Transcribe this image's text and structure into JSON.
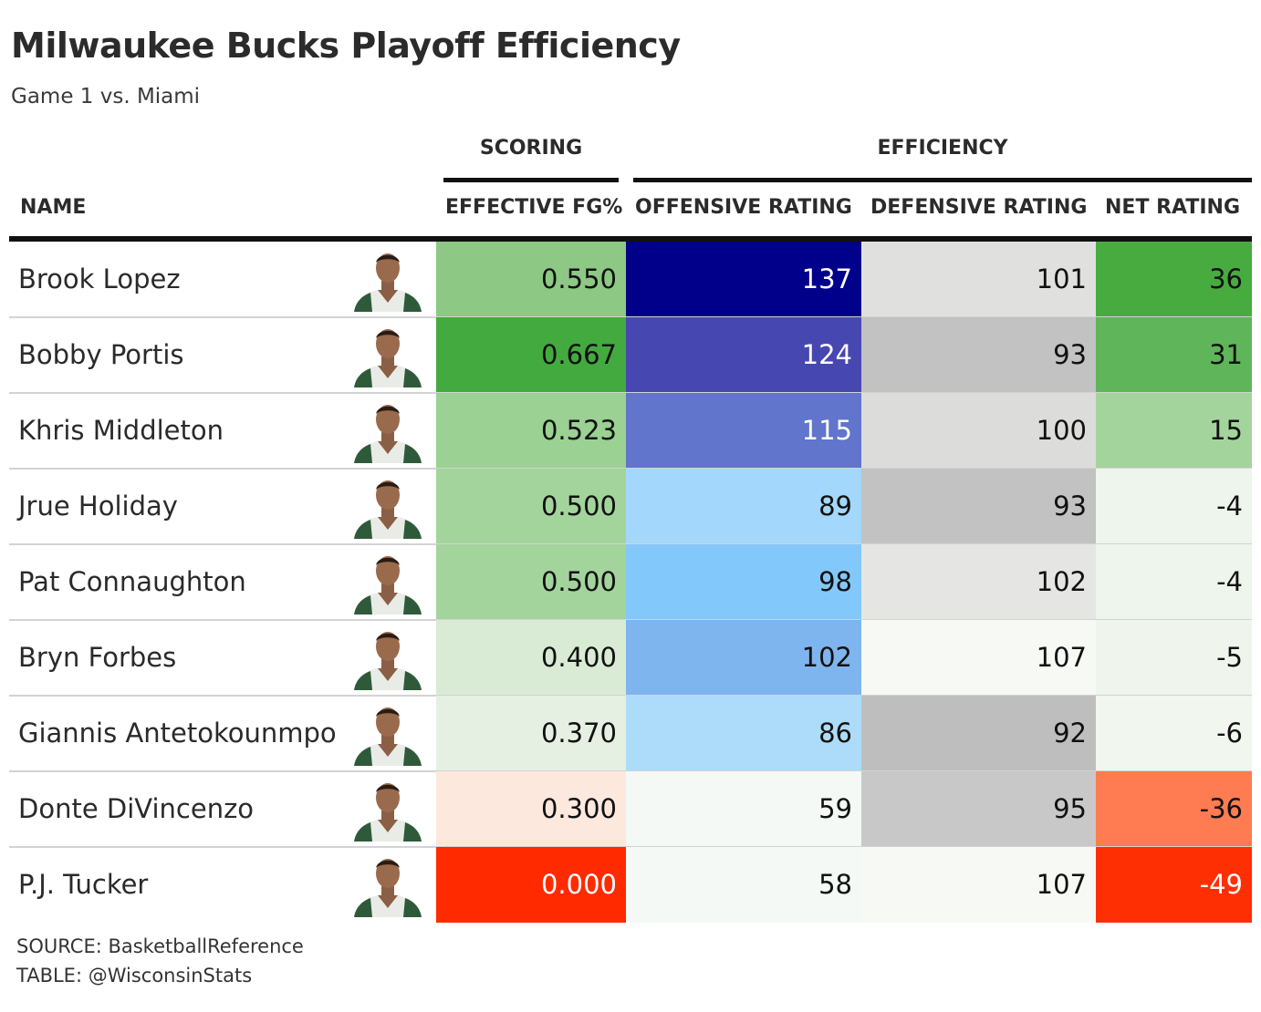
{
  "title": "Milwaukee Bucks Playoff Efficiency",
  "subtitle": "Game 1 vs. Miami",
  "spanners": {
    "scoring": "SCORING",
    "efficiency": "EFFICIENCY"
  },
  "columns": {
    "name": "NAME",
    "efg": "EFFECTIVE FG%",
    "ortg": "OFFENSIVE RATING",
    "drtg": "DEFENSIVE RATING",
    "net": "NET RATING"
  },
  "rows": [
    {
      "name": "Brook Lopez",
      "efg": "0.550",
      "ortg": "137",
      "drtg": "101",
      "net": "36",
      "colors": {
        "efg": "#8dc884",
        "ortg": "#00008b",
        "drtg": "#e0e1de",
        "net": "#48ab40"
      },
      "text_colors": {
        "efg": "#111111",
        "ortg": "#ffffff",
        "drtg": "#111111",
        "net": "#111111"
      }
    },
    {
      "name": "Bobby Portis",
      "efg": "0.667",
      "ortg": "124",
      "drtg": "93",
      "net": "31",
      "colors": {
        "efg": "#43aa3f",
        "ortg": "#4747b1",
        "drtg": "#c2c2c2",
        "net": "#5fb55a"
      },
      "text_colors": {
        "efg": "#111111",
        "ortg": "#ffffff",
        "drtg": "#111111",
        "net": "#111111"
      }
    },
    {
      "name": "Khris Middleton",
      "efg": "0.523",
      "ortg": "115",
      "drtg": "100",
      "net": "15",
      "colors": {
        "efg": "#9bd193",
        "ortg": "#6075cb",
        "drtg": "#dcdcdb",
        "net": "#a3d49c"
      },
      "text_colors": {
        "efg": "#111111",
        "ortg": "#ffffff",
        "drtg": "#111111",
        "net": "#111111"
      }
    },
    {
      "name": "Jrue Holiday",
      "efg": "0.500",
      "ortg": "89",
      "drtg": "93",
      "net": "-4",
      "colors": {
        "efg": "#a3d49c",
        "ortg": "#a3d7fb",
        "drtg": "#c2c2c2",
        "net": "#eef5ec"
      },
      "text_colors": {
        "efg": "#111111",
        "ortg": "#111111",
        "drtg": "#111111",
        "net": "#111111"
      }
    },
    {
      "name": "Pat Connaughton",
      "efg": "0.500",
      "ortg": "98",
      "drtg": "102",
      "net": "-4",
      "colors": {
        "efg": "#a3d49c",
        "ortg": "#83c8fa",
        "drtg": "#e5e6e3",
        "net": "#eef5ec"
      },
      "text_colors": {
        "efg": "#111111",
        "ortg": "#111111",
        "drtg": "#111111",
        "net": "#111111"
      }
    },
    {
      "name": "Bryn Forbes",
      "efg": "0.400",
      "ortg": "102",
      "drtg": "107",
      "net": "-5",
      "colors": {
        "efg": "#d9ebd4",
        "ortg": "#7fb5ee",
        "drtg": "#f6f9f4",
        "net": "#eff5ed"
      },
      "text_colors": {
        "efg": "#111111",
        "ortg": "#111111",
        "drtg": "#111111",
        "net": "#111111"
      }
    },
    {
      "name": "Giannis Antetokounmpo",
      "efg": "0.370",
      "ortg": "86",
      "drtg": "92",
      "net": "-6",
      "colors": {
        "efg": "#e5f0e2",
        "ortg": "#addcfb",
        "drtg": "#bebebe",
        "net": "#f1f6ef"
      },
      "text_colors": {
        "efg": "#111111",
        "ortg": "#111111",
        "drtg": "#111111",
        "net": "#111111"
      }
    },
    {
      "name": "Donte DiVincenzo",
      "efg": "0.300",
      "ortg": "59",
      "drtg": "95",
      "net": "-36",
      "colors": {
        "efg": "#fde8de",
        "ortg": "#f4f9f6",
        "drtg": "#c8c8c8",
        "net": "#ff7b52"
      },
      "text_colors": {
        "efg": "#111111",
        "ortg": "#111111",
        "drtg": "#111111",
        "net": "#111111"
      }
    },
    {
      "name": "P.J. Tucker",
      "efg": "0.000",
      "ortg": "58",
      "drtg": "107",
      "net": "-49",
      "colors": {
        "efg": "#ff2a00",
        "ortg": "#f4f9f6",
        "drtg": "#f6f9f4",
        "net": "#ff2f04"
      },
      "text_colors": {
        "efg": "#ffffff",
        "ortg": "#111111",
        "drtg": "#111111",
        "net": "#ffffff"
      }
    }
  ],
  "footer": {
    "source": "SOURCE: BasketballReference",
    "table": "TABLE: @WisconsinStats"
  }
}
